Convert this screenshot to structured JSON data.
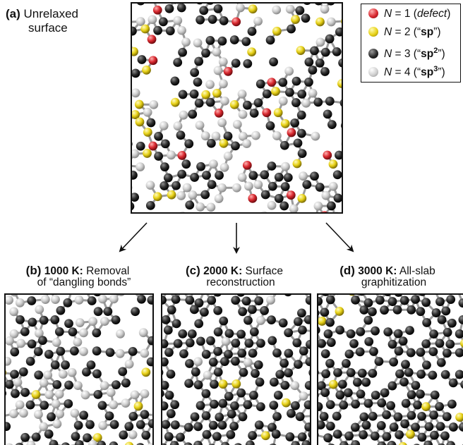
{
  "panel_a": {
    "letter": "(a)",
    "title_line1": "Unrelaxed",
    "title_line2": "surface"
  },
  "legend": {
    "items": [
      {
        "n_label": "N",
        "eq": " = 1 (",
        "name": "defect",
        "close": ")",
        "color": "#d8282f"
      },
      {
        "n_label": "N",
        "eq": " = 2 (“",
        "name": "sp",
        "close": "”)",
        "color": "#e7d116"
      },
      {
        "n_label": "N",
        "eq": " = 3 (“",
        "name": "sp",
        "sup": "2",
        "close": "”)",
        "color": "#2b2b2b"
      },
      {
        "n_label": "N",
        "eq": " = 4 (“",
        "name": "sp",
        "sup": "3",
        "close": "”)",
        "color": "#cfcfcf"
      }
    ]
  },
  "panel_b": {
    "letter": "(b)",
    "temp": "1000 K:",
    "line1_rest": " Removal",
    "line2": "of “dangling bonds”"
  },
  "panel_c": {
    "letter": "(c)",
    "temp": "2000 K:",
    "line1_rest": " Surface",
    "line2": "reconstruction"
  },
  "panel_d": {
    "letter": "(d)",
    "temp": "3000 K:",
    "line1_rest": " All-slab",
    "line2": "graphitization"
  },
  "colors": {
    "defect": "#d8282f",
    "sp": "#e7d116",
    "sp2": "#2b2b2b",
    "sp3": "#cfcfcf",
    "bond": "#9a9a9a"
  }
}
